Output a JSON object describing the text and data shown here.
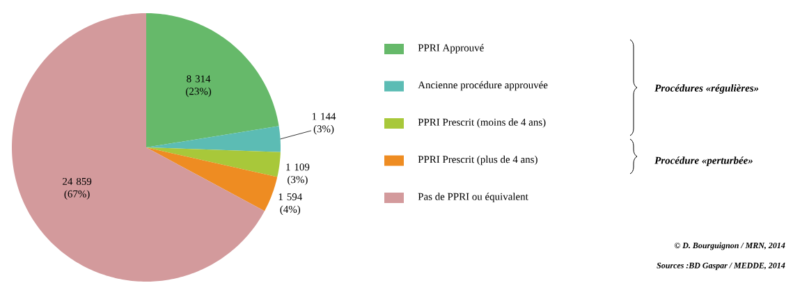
{
  "chart_data": {
    "type": "pie",
    "categories": [
      "PPRI Approuvé",
      "Ancienne procédure approuvée",
      "PPRI Prescrit (moins de 4 ans)",
      "PPRI Prescrit (plus de 4 ans)",
      "Pas de PPRI ou équivalent"
    ],
    "values": [
      8314,
      1144,
      1109,
      1594,
      24859
    ],
    "colors": [
      "#66b96a",
      "#5cbcb4",
      "#a8c83a",
      "#ee8c22",
      "#d39a9c"
    ],
    "value_labels": [
      "8 314 (23%)",
      "1 144 (3%)",
      "1 109 (3%)",
      "1 594 (4%)",
      "24 859 (67%)"
    ],
    "legend": "right",
    "annotations": [
      "Procédures «régulières»",
      "Procédure «perturbée»",
      "© D. Bourguignon / MRN, 2014",
      "Sources :BD Gaspar / MEDDE, 2014"
    ]
  }
}
